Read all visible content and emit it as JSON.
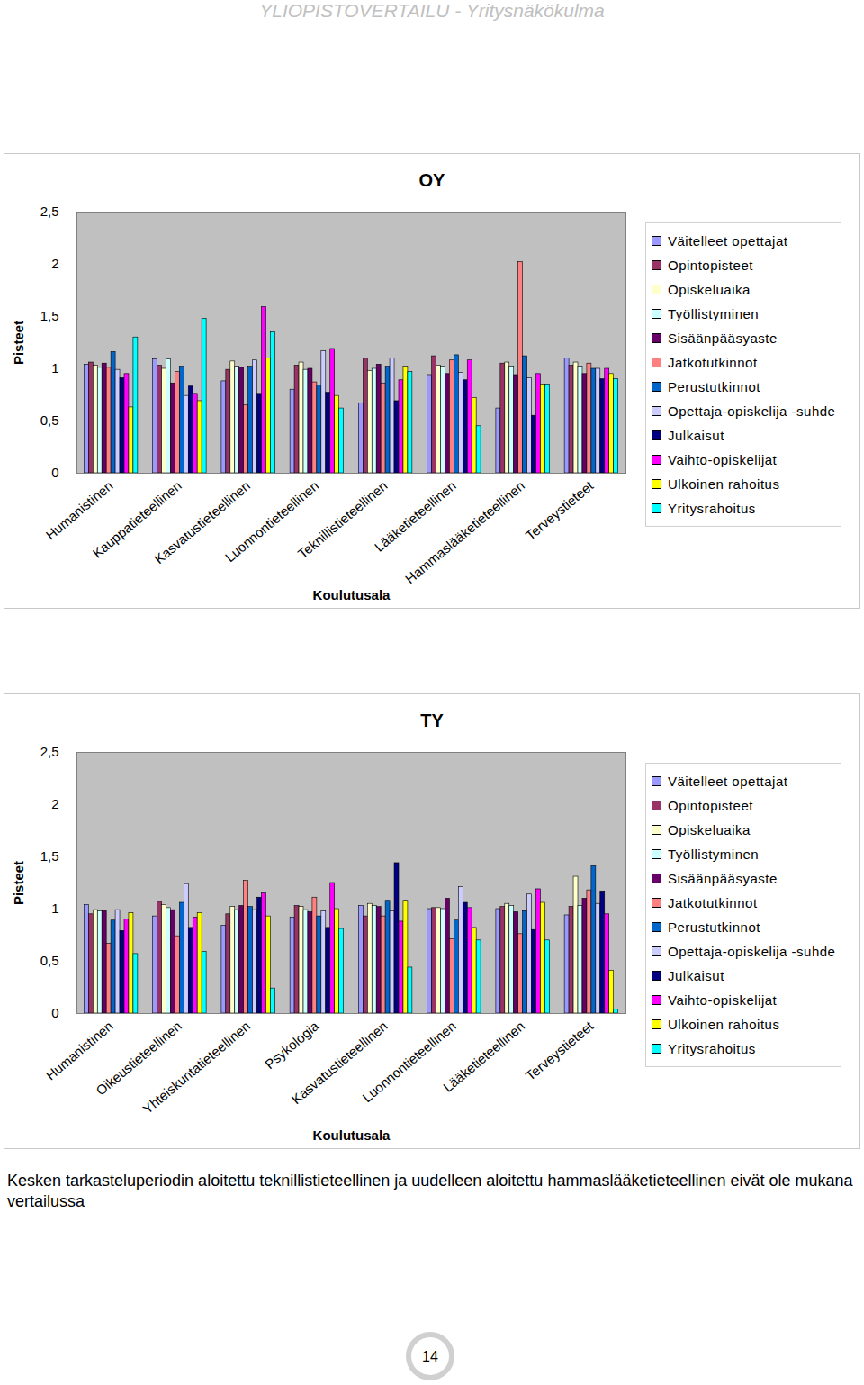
{
  "header": "YLIOPISTOVERTAILU - Yritysnäkökulma",
  "chart_data": [
    {
      "type": "bar",
      "title": "OY",
      "x_label": "Koulutusala",
      "y_label": "Pisteet",
      "legend": "right",
      "categories": [
        "Humanistinen",
        "Kauppatieteellinen",
        "Kasvatustieteellinen",
        "Luonnontieteellinen",
        "Teknillistieteellinen",
        "Lääketieteellinen",
        "Hammaslääketieteellinen",
        "Terveystieteet"
      ],
      "ylim": [
        0,
        2.5
      ],
      "yticks": [
        0,
        {
          "value": 0.5,
          "label": "0,5"
        },
        1,
        {
          "value": 1.5,
          "label": "1,5"
        },
        2,
        {
          "value": 2.5,
          "label": "2,5"
        }
      ],
      "series": [
        {
          "name": "Väitelleet opettajat",
          "color": "#9999ff",
          "values": [
            1.04,
            1.09,
            0.88,
            0.8,
            0.67,
            0.94,
            0.62,
            1.1
          ]
        },
        {
          "name": "Opintopisteet",
          "color": "#993366",
          "values": [
            1.06,
            1.03,
            0.99,
            1.03,
            1.1,
            1.12,
            1.05,
            1.03
          ]
        },
        {
          "name": "Opiskeluaika",
          "color": "#ffffcc",
          "values": [
            1.03,
            1.0,
            1.07,
            1.06,
            0.98,
            1.03,
            1.06,
            1.06
          ]
        },
        {
          "name": "Työllistyminen",
          "color": "#ccffff",
          "values": [
            1.01,
            1.09,
            1.02,
            0.99,
            1.0,
            1.02,
            1.02,
            1.02
          ]
        },
        {
          "name": "Sisäänpääsyaste",
          "color": "#660066",
          "values": [
            1.05,
            0.86,
            1.01,
            1.0,
            1.04,
            0.95,
            0.94,
            0.95
          ]
        },
        {
          "name": "Jatkotutkinnot",
          "color": "#ff8080",
          "values": [
            1.01,
            0.97,
            0.65,
            0.87,
            0.86,
            1.08,
            2.02,
            1.05
          ]
        },
        {
          "name": "Perustutkinnot",
          "color": "#0066cc",
          "values": [
            1.16,
            1.02,
            1.02,
            0.84,
            1.02,
            1.13,
            1.12,
            1.0
          ]
        },
        {
          "name": "Opettaja-opiskelija -suhde",
          "color": "#ccccff",
          "values": [
            0.99,
            0.74,
            1.08,
            1.17,
            1.1,
            0.96,
            0.91,
            1.0
          ]
        },
        {
          "name": "Julkaisut",
          "color": "#000080",
          "values": [
            0.91,
            0.83,
            0.76,
            0.77,
            0.69,
            0.89,
            0.55,
            0.9
          ]
        },
        {
          "name": "Vaihto-opiskelijat",
          "color": "#ff00ff",
          "values": [
            0.95,
            0.76,
            1.59,
            1.19,
            0.89,
            1.08,
            0.95,
            1.0
          ]
        },
        {
          "name": "Ulkoinen rahoitus",
          "color": "#ffff00",
          "values": [
            0.63,
            0.69,
            1.1,
            0.74,
            1.02,
            0.72,
            0.85,
            0.95
          ]
        },
        {
          "name": "Yritysrahoitus",
          "color": "#00ffff",
          "values": [
            1.3,
            1.48,
            1.35,
            0.62,
            0.97,
            0.45,
            0.85,
            0.9
          ]
        }
      ]
    },
    {
      "type": "bar",
      "title": "TY",
      "x_label": "Koulutusala",
      "y_label": "Pisteet",
      "legend": "right",
      "categories": [
        "Humanistinen",
        "Oikeustieteellinen",
        "Yhteiskuntatieteellinen",
        "Psykologia",
        "Kasvatustieteellinen",
        "Luonnontieteellinen",
        "Lääketieteellinen",
        "Terveystieteet"
      ],
      "ylim": [
        0,
        2.5
      ],
      "yticks": [
        0,
        {
          "value": 0.5,
          "label": "0,5"
        },
        1,
        {
          "value": 1.5,
          "label": "1,5"
        },
        2,
        {
          "value": 2.5,
          "label": "2,5"
        }
      ],
      "series": [
        {
          "name": "Väitelleet opettajat",
          "color": "#9999ff",
          "values": [
            1.04,
            0.93,
            0.84,
            0.92,
            1.03,
            1.0,
            1.0,
            0.94
          ]
        },
        {
          "name": "Opintopisteet",
          "color": "#993366",
          "values": [
            0.95,
            1.07,
            0.95,
            1.03,
            0.93,
            1.01,
            1.02,
            1.02
          ]
        },
        {
          "name": "Opiskeluaika",
          "color": "#ffffcc",
          "values": [
            0.99,
            1.04,
            1.02,
            1.02,
            1.05,
            1.01,
            1.05,
            1.31
          ]
        },
        {
          "name": "Työllistyminen",
          "color": "#ccffff",
          "values": [
            0.98,
            1.01,
            0.99,
            0.99,
            1.03,
            1.0,
            1.03,
            1.03
          ]
        },
        {
          "name": "Sisäänpääsyaste",
          "color": "#660066",
          "values": [
            0.98,
            0.99,
            1.03,
            0.97,
            1.02,
            1.1,
            0.97,
            1.1
          ]
        },
        {
          "name": "Jatkotutkinnot",
          "color": "#ff8080",
          "values": [
            0.67,
            0.74,
            1.27,
            1.11,
            0.93,
            0.71,
            0.76,
            1.18
          ]
        },
        {
          "name": "Perustutkinnot",
          "color": "#0066cc",
          "values": [
            0.89,
            1.06,
            1.02,
            0.93,
            1.08,
            0.89,
            0.98,
            1.41
          ]
        },
        {
          "name": "Opettaja-opiskelija -suhde",
          "color": "#ccccff",
          "values": [
            0.99,
            1.24,
            0.99,
            0.98,
            0.98,
            1.21,
            1.14,
            1.05
          ]
        },
        {
          "name": "Julkaisut",
          "color": "#000080",
          "values": [
            0.79,
            0.82,
            1.11,
            0.82,
            1.44,
            1.06,
            0.8,
            1.17
          ]
        },
        {
          "name": "Vaihto-opiskelijat",
          "color": "#ff00ff",
          "values": [
            0.9,
            0.92,
            1.15,
            1.25,
            0.88,
            1.01,
            1.19,
            0.95
          ]
        },
        {
          "name": "Ulkoinen rahoitus",
          "color": "#ffff00",
          "values": [
            0.96,
            0.96,
            0.93,
            1.0,
            1.08,
            0.82,
            1.06,
            0.41
          ]
        },
        {
          "name": "Yritysrahoitus",
          "color": "#00ffff",
          "values": [
            0.57,
            0.59,
            0.24,
            0.81,
            0.44,
            0.7,
            0.7,
            0.04
          ]
        }
      ]
    }
  ],
  "caption": "Kesken tarkasteluperiodin aloitettu teknillistieteellinen ja uudelleen aloitettu hammaslääketieteellinen eivät ole mukana vertailussa",
  "page_number": 14
}
